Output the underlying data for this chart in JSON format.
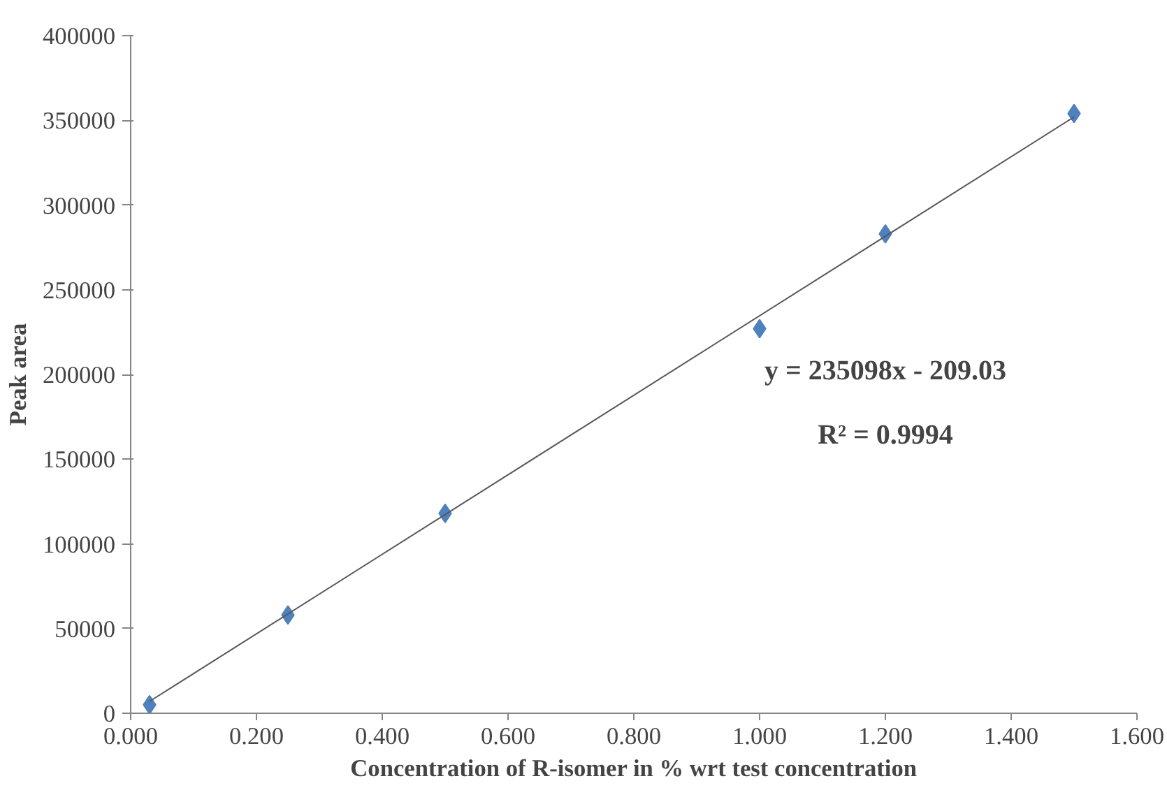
{
  "chart_data": {
    "type": "scatter",
    "xlabel": "Concentration of R-isomer in % wrt test concentration",
    "ylabel": "Peak area",
    "x": [
      0.03,
      0.25,
      0.5,
      1.0,
      1.2,
      1.5
    ],
    "series": [
      {
        "color": "#4f81bd",
        "values": [
          5000,
          58000,
          118000,
          227000,
          283000,
          354000
        ],
        "marker": "diamond"
      },
      {
        "type": "line",
        "color": "#595959",
        "x": [
          0.03,
          1.5
        ],
        "values": [
          7000,
          352000
        ],
        "line_style": "solid"
      }
    ],
    "annotations": [
      "y = 235098x - 209.03",
      "R² = 0.9994"
    ],
    "xlim": [
      0,
      1.6
    ],
    "ylim": [
      0,
      400000
    ],
    "xticks": [
      {
        "value": 0,
        "label": "0.000"
      },
      {
        "value": 0.2,
        "label": "0.200"
      },
      {
        "value": 0.4,
        "label": "0.400"
      },
      {
        "value": 0.6,
        "label": "0.600"
      },
      {
        "value": 0.8,
        "label": "0.800"
      },
      {
        "value": 1.0,
        "label": "1.000"
      },
      {
        "value": 1.2,
        "label": "1.200"
      },
      {
        "value": 1.4,
        "label": "1.400"
      },
      {
        "value": 1.6,
        "label": "1.600"
      }
    ],
    "yticks": [
      0,
      50000,
      100000,
      150000,
      200000,
      250000,
      300000,
      350000,
      400000
    ],
    "grid": false
  }
}
